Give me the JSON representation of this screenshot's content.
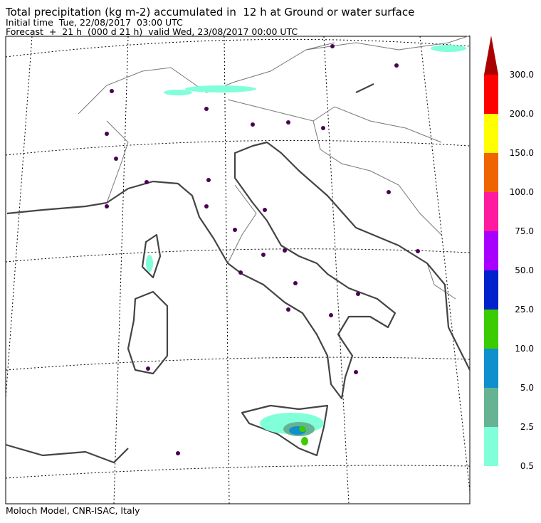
{
  "header": {
    "title": "Total precipitation (kg m-2) accumulated in  12 h at Ground or water surface",
    "initial_time": "Initial time  Tue, 22/08/2017  03:00 UTC",
    "forecast": "Forecast  +  21 h  (000 d 21 h)  valid Wed, 23/08/2017 00:00 UTC"
  },
  "colorbar": {
    "levels": [
      {
        "value": 0.5,
        "label": "0.5"
      },
      {
        "value": 2.5,
        "label": "2.5"
      },
      {
        "value": 5,
        "label": "5.0"
      },
      {
        "value": 10,
        "label": "10.0"
      },
      {
        "value": 25,
        "label": "25.0"
      },
      {
        "value": 50,
        "label": "50.0"
      },
      {
        "value": 75,
        "label": "75.0"
      },
      {
        "value": 100,
        "label": "100.0"
      },
      {
        "value": 150,
        "label": "150.0"
      },
      {
        "value": 200,
        "label": "200.0"
      },
      {
        "value": 300,
        "label": "300.0"
      }
    ],
    "colors": [
      "#80ffd9",
      "#66b394",
      "#0f8fcc",
      "#3bcc00",
      "#0022cc",
      "#a800ff",
      "#ff1aa0",
      "#f06400",
      "#ffff00",
      "#ff0000",
      "#aa0000"
    ]
  },
  "footer": "Moloch Model, CNR-ISAC, Italy"
}
